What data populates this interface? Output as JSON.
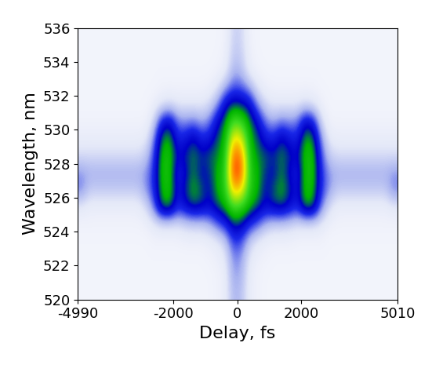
{
  "chart_data": {
    "type": "heatmap",
    "xlabel": "Delay, fs",
    "ylabel": "Wavelength, nm",
    "xlim": [
      -4990,
      5010
    ],
    "ylim": [
      520,
      536
    ],
    "xticks": [
      -4990,
      -2000,
      0,
      2000,
      5010
    ],
    "yticks": [
      520,
      522,
      524,
      526,
      528,
      530,
      532,
      534,
      536
    ],
    "zlim": [
      0,
      100
    ],
    "x": [
      -4865,
      -4615,
      -4365,
      -4115,
      -3865,
      -3615,
      -3365,
      -3115,
      -2865,
      -2615,
      -2365,
      -2115,
      -1865,
      -1615,
      -1365,
      -1115,
      -865,
      -615,
      -365,
      -115,
      135,
      385,
      635,
      885,
      1135,
      1385,
      1635,
      1885,
      2135,
      2385,
      2635,
      2885,
      3135,
      3385,
      3635,
      3885,
      4135,
      4385,
      4635,
      4885
    ],
    "y": [
      520.5,
      521.5,
      522.5,
      523.5,
      524.5,
      525.5,
      526.5,
      527.5,
      528.5,
      529.5,
      530.5,
      531.5,
      532.5,
      533.5,
      534.5,
      535.5
    ],
    "cells": [
      [
        5,
        5,
        5,
        5,
        5,
        5,
        5,
        5,
        5,
        5,
        5,
        5,
        5,
        5,
        5,
        5,
        5,
        6,
        8,
        18,
        16,
        8,
        6,
        5,
        5,
        5,
        5,
        5,
        5,
        5,
        5,
        5,
        5,
        5,
        5,
        5,
        5,
        5,
        5,
        5
      ],
      [
        5,
        5,
        5,
        5,
        5,
        5,
        5,
        5,
        5,
        5,
        5,
        5,
        5,
        5,
        5,
        5,
        5,
        6,
        8,
        20,
        18,
        8,
        6,
        5,
        5,
        5,
        5,
        5,
        5,
        5,
        5,
        5,
        5,
        5,
        5,
        5,
        5,
        5,
        5,
        5
      ],
      [
        5,
        5,
        5,
        5,
        5,
        5,
        5,
        5,
        5,
        5,
        5,
        5,
        5,
        5,
        5,
        5,
        6,
        7,
        10,
        22,
        20,
        10,
        7,
        6,
        5,
        5,
        5,
        5,
        5,
        5,
        5,
        5,
        5,
        5,
        5,
        5,
        5,
        5,
        5,
        5
      ],
      [
        5,
        5,
        5,
        5,
        5,
        5,
        5,
        5,
        5,
        6,
        6,
        6,
        6,
        7,
        7,
        7,
        8,
        10,
        15,
        28,
        26,
        15,
        10,
        8,
        7,
        7,
        7,
        6,
        6,
        6,
        6,
        5,
        5,
        5,
        5,
        5,
        5,
        5,
        5,
        5
      ],
      [
        6,
        6,
        6,
        6,
        6,
        6,
        6,
        6,
        7,
        10,
        12,
        12,
        12,
        14,
        15,
        15,
        18,
        25,
        30,
        40,
        38,
        30,
        25,
        18,
        15,
        15,
        14,
        12,
        12,
        12,
        10,
        7,
        6,
        6,
        6,
        6,
        6,
        6,
        6,
        6
      ],
      [
        10,
        8,
        8,
        8,
        8,
        8,
        8,
        8,
        12,
        22,
        42,
        45,
        30,
        35,
        40,
        38,
        35,
        40,
        45,
        55,
        52,
        45,
        40,
        35,
        38,
        40,
        35,
        30,
        45,
        42,
        22,
        12,
        8,
        8,
        8,
        8,
        8,
        8,
        8,
        10
      ],
      [
        22,
        15,
        15,
        15,
        15,
        15,
        15,
        15,
        20,
        28,
        45,
        48,
        32,
        38,
        45,
        40,
        35,
        45,
        50,
        80,
        75,
        50,
        45,
        35,
        40,
        45,
        38,
        32,
        48,
        45,
        28,
        20,
        15,
        15,
        15,
        15,
        15,
        15,
        15,
        22
      ],
      [
        20,
        18,
        18,
        18,
        18,
        18,
        18,
        18,
        20,
        28,
        47,
        48,
        30,
        35,
        42,
        35,
        38,
        45,
        50,
        95,
        90,
        50,
        45,
        38,
        35,
        42,
        35,
        30,
        48,
        47,
        28,
        20,
        18,
        18,
        18,
        18,
        18,
        18,
        18,
        20
      ],
      [
        12,
        12,
        12,
        12,
        12,
        12,
        12,
        12,
        14,
        25,
        46,
        48,
        35,
        38,
        42,
        38,
        40,
        42,
        48,
        90,
        85,
        48,
        42,
        40,
        38,
        42,
        38,
        35,
        48,
        46,
        25,
        14,
        12,
        12,
        12,
        12,
        12,
        12,
        12,
        12
      ],
      [
        8,
        8,
        8,
        8,
        8,
        8,
        8,
        8,
        9,
        20,
        42,
        45,
        30,
        32,
        38,
        30,
        32,
        40,
        45,
        75,
        70,
        45,
        40,
        32,
        30,
        38,
        32,
        30,
        45,
        42,
        20,
        9,
        8,
        8,
        8,
        8,
        8,
        8,
        8,
        8
      ],
      [
        6,
        6,
        6,
        6,
        6,
        6,
        6,
        6,
        6,
        12,
        30,
        35,
        22,
        20,
        22,
        18,
        22,
        35,
        42,
        55,
        52,
        42,
        35,
        22,
        18,
        22,
        20,
        22,
        35,
        30,
        12,
        6,
        6,
        6,
        6,
        6,
        6,
        6,
        6,
        6
      ],
      [
        5,
        5,
        5,
        5,
        5,
        5,
        5,
        5,
        5,
        7,
        10,
        12,
        10,
        10,
        10,
        10,
        12,
        20,
        35,
        40,
        38,
        35,
        20,
        12,
        10,
        10,
        10,
        10,
        12,
        10,
        7,
        5,
        5,
        5,
        5,
        5,
        5,
        5,
        5,
        5
      ],
      [
        5,
        5,
        5,
        5,
        5,
        5,
        5,
        5,
        5,
        5,
        6,
        6,
        6,
        6,
        6,
        6,
        7,
        10,
        18,
        25,
        24,
        18,
        10,
        7,
        6,
        6,
        6,
        6,
        6,
        6,
        5,
        5,
        5,
        5,
        5,
        5,
        5,
        5,
        5,
        5
      ],
      [
        5,
        5,
        5,
        5,
        5,
        5,
        5,
        5,
        5,
        5,
        5,
        5,
        5,
        5,
        5,
        5,
        5,
        6,
        8,
        18,
        16,
        8,
        6,
        5,
        5,
        5,
        5,
        5,
        5,
        5,
        5,
        5,
        5,
        5,
        5,
        5,
        5,
        5,
        5,
        5
      ],
      [
        5,
        5,
        5,
        5,
        5,
        5,
        5,
        5,
        5,
        5,
        5,
        5,
        5,
        5,
        5,
        5,
        5,
        5,
        7,
        15,
        14,
        7,
        5,
        5,
        5,
        5,
        5,
        5,
        5,
        5,
        5,
        5,
        5,
        5,
        5,
        5,
        5,
        5,
        5,
        5
      ],
      [
        5,
        5,
        5,
        5,
        5,
        5,
        5,
        5,
        5,
        5,
        5,
        5,
        5,
        5,
        5,
        5,
        5,
        5,
        6,
        14,
        13,
        6,
        5,
        5,
        5,
        5,
        5,
        5,
        5,
        5,
        5,
        5,
        5,
        5,
        5,
        5,
        5,
        5,
        5,
        5
      ]
    ]
  }
}
